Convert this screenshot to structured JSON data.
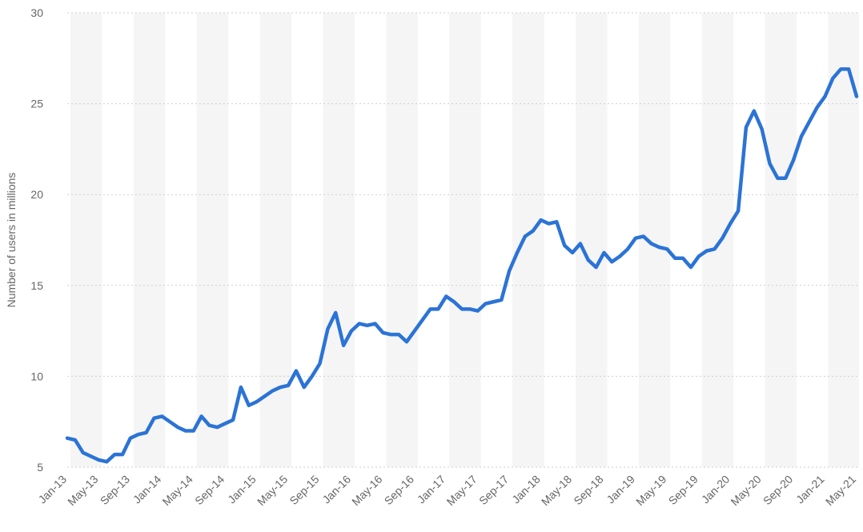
{
  "chart_data": {
    "type": "line",
    "title": "",
    "xlabel": "",
    "ylabel": "Number of users in millions",
    "ylim": [
      5,
      30
    ],
    "yticks": [
      5,
      10,
      15,
      20,
      25,
      30
    ],
    "grid": true,
    "legend": "none",
    "colors": {
      "line": "#2b73d6",
      "band": "#f5f5f5",
      "grid": "#cfcfcf",
      "text": "#666666"
    },
    "x_tick_labels": [
      "Jan-13",
      "May-13",
      "Sep-13",
      "Jan-14",
      "May-14",
      "Sep-14",
      "Jan-15",
      "May-15",
      "Sep-15",
      "Jan-16",
      "May-16",
      "Sep-16",
      "Jan-17",
      "May-17",
      "Sep-17",
      "Jan-18",
      "May-18",
      "Sep-18",
      "Jan-19",
      "May-19",
      "Sep-19",
      "Jan-20",
      "May-20",
      "Sep-20",
      "Jan-21",
      "May-21"
    ],
    "x_start": "2013-01",
    "x_end": "2021-06",
    "series": [
      {
        "values": [
          6.6,
          6.5,
          5.8,
          5.6,
          5.4,
          5.3,
          5.7,
          5.7,
          6.6,
          6.8,
          6.9,
          7.7,
          7.8,
          7.5,
          7.2,
          7.0,
          7.0,
          7.8,
          7.3,
          7.2,
          7.4,
          7.6,
          9.4,
          8.4,
          8.6,
          8.9,
          9.2,
          9.4,
          9.5,
          10.3,
          9.4,
          10.0,
          10.7,
          12.6,
          13.5,
          11.7,
          12.5,
          12.9,
          12.8,
          12.9,
          12.4,
          12.3,
          12.3,
          11.9,
          12.5,
          13.1,
          13.7,
          13.7,
          14.4,
          14.1,
          13.7,
          13.7,
          13.6,
          14.0,
          14.1,
          14.2,
          15.8,
          16.8,
          17.7,
          18.0,
          18.6,
          18.4,
          18.5,
          17.2,
          16.8,
          17.3,
          16.4,
          16.0,
          16.8,
          16.3,
          16.6,
          17.0,
          17.6,
          17.7,
          17.3,
          17.1,
          17.0,
          16.5,
          16.5,
          16.0,
          16.6,
          16.9,
          17.0,
          17.6,
          18.4,
          19.1,
          23.7,
          24.6,
          23.6,
          21.7,
          20.9,
          20.9,
          21.9,
          23.2,
          24.0,
          24.8,
          25.4,
          26.4,
          26.9,
          26.9,
          25.4
        ]
      }
    ]
  }
}
